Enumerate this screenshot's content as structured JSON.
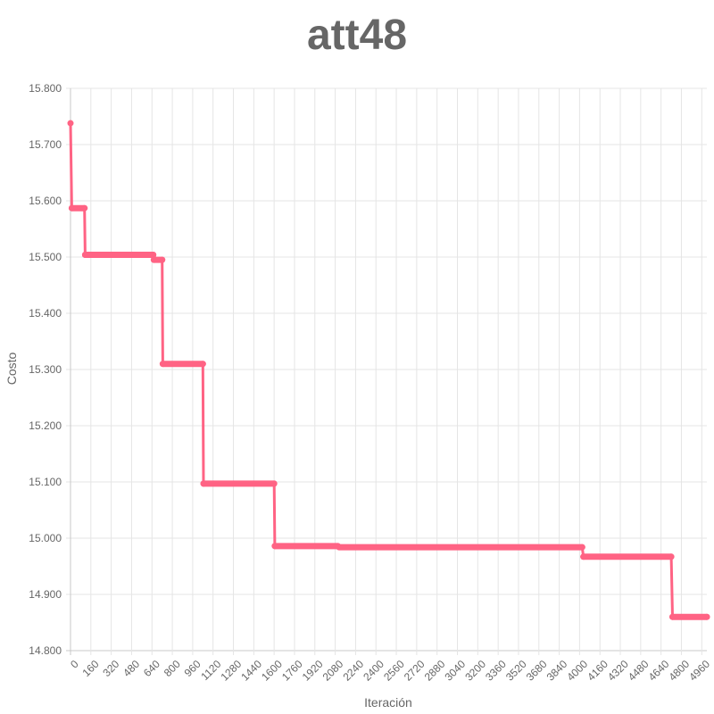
{
  "chart_data": {
    "type": "line",
    "title": "att48",
    "xlabel": "Iteración",
    "ylabel": "Costo",
    "xlim": [
      0,
      5000
    ],
    "ylim": [
      14800,
      15800
    ],
    "grid": true,
    "color": "#ff6384",
    "x_ticks": [
      "0",
      "160",
      "320",
      "480",
      "640",
      "800",
      "960",
      "1120",
      "1280",
      "1440",
      "1600",
      "1760",
      "1920",
      "2080",
      "2240",
      "2400",
      "2560",
      "2720",
      "2880",
      "3040",
      "3200",
      "3360",
      "3520",
      "3680",
      "3840",
      "4000",
      "4160",
      "4320",
      "4480",
      "4640",
      "4800",
      "4960"
    ],
    "y_ticks": [
      "14.800",
      "14.900",
      "15.000",
      "15.100",
      "15.200",
      "15.300",
      "15.400",
      "15.500",
      "15.600",
      "15.700",
      "15.800"
    ],
    "series": [
      {
        "x": [
          0,
          10,
          110,
          115,
          650,
          655,
          720,
          725,
          1040,
          1045,
          1600,
          1605,
          2100,
          2110,
          4020,
          4030,
          4720,
          4730,
          5000
        ],
        "y": [
          15738,
          15587,
          15587,
          15504,
          15504,
          15495,
          15495,
          15310,
          15310,
          15097,
          15097,
          14986,
          14986,
          14984,
          14984,
          14967,
          14967,
          14860,
          14860
        ]
      }
    ]
  }
}
